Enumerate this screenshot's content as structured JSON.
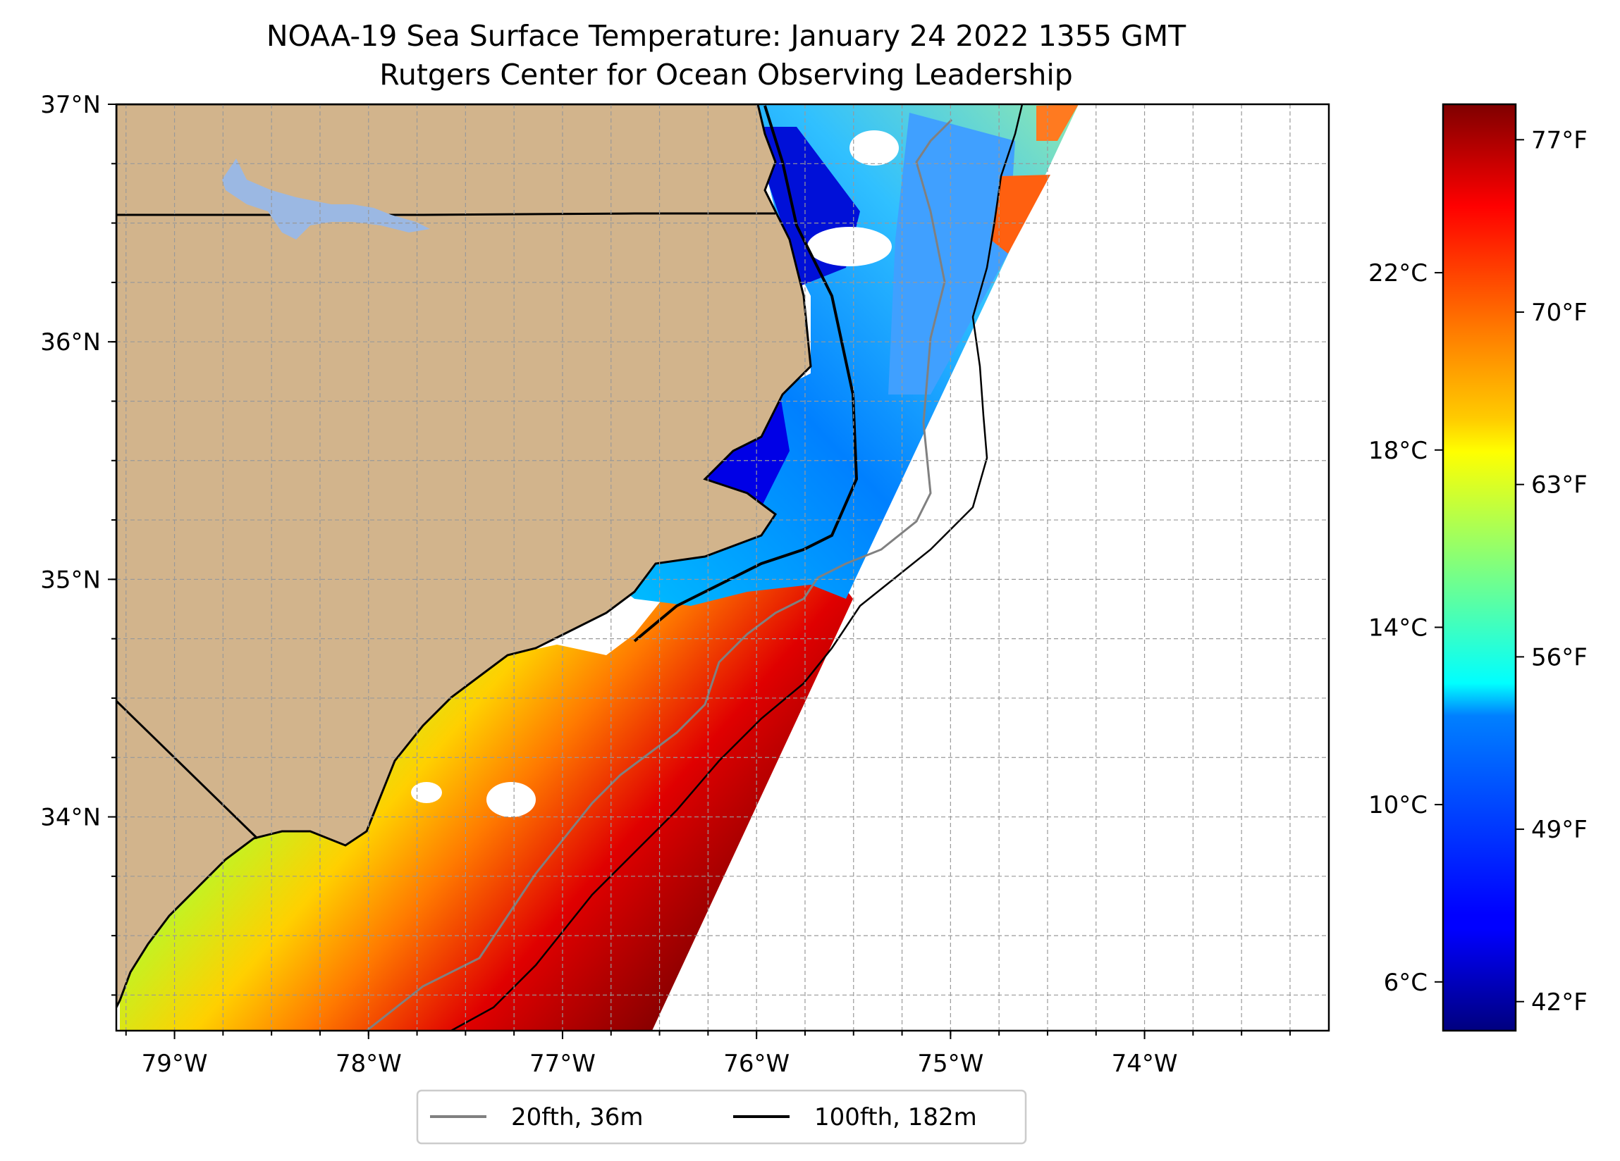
{
  "title_line1": "NOAA-19 Sea Surface Temperature: January 24 2022 1355 GMT",
  "title_line2": "Rutgers Center for Ocean Observing Leadership",
  "map": {
    "lon_range": [
      -79.3,
      -73.05
    ],
    "lat_range": [
      33.1,
      37.0
    ],
    "land_color": "#d2b48c",
    "lake_color": "#9bb8e3",
    "grid": "dashed",
    "lon_ticks": [
      {
        "value": -79,
        "label": "79°W"
      },
      {
        "value": -78,
        "label": "78°W"
      },
      {
        "value": -77,
        "label": "77°W"
      },
      {
        "value": -76,
        "label": "76°W"
      },
      {
        "value": -75,
        "label": "75°W"
      },
      {
        "value": -74,
        "label": "74°W"
      }
    ],
    "lat_ticks": [
      {
        "value": 37,
        "label": "37°N"
      },
      {
        "value": 36,
        "label": "36°N"
      },
      {
        "value": 35,
        "label": "35°N"
      },
      {
        "value": 34,
        "label": "34°N"
      }
    ]
  },
  "legend": {
    "position": "bottom-center",
    "items": [
      {
        "label": "20fth, 36m",
        "color": "#808080"
      },
      {
        "label": "100fth, 182m",
        "color": "#000000"
      }
    ]
  },
  "colorbar": {
    "colormap": "jet",
    "range_c": [
      4.9,
      25.8
    ],
    "celsius_ticks": [
      {
        "value": 6,
        "label": "6°C"
      },
      {
        "value": 10,
        "label": "10°C"
      },
      {
        "value": 14,
        "label": "14°C"
      },
      {
        "value": 18,
        "label": "18°C"
      },
      {
        "value": 22,
        "label": "22°C"
      }
    ],
    "fahrenheit_ticks": [
      {
        "value": 42,
        "label": "42°F"
      },
      {
        "value": 49,
        "label": "49°F"
      },
      {
        "value": 56,
        "label": "56°F"
      },
      {
        "value": 63,
        "label": "63°F"
      },
      {
        "value": 70,
        "label": "70°F"
      },
      {
        "value": 77,
        "label": "77°F"
      }
    ]
  }
}
